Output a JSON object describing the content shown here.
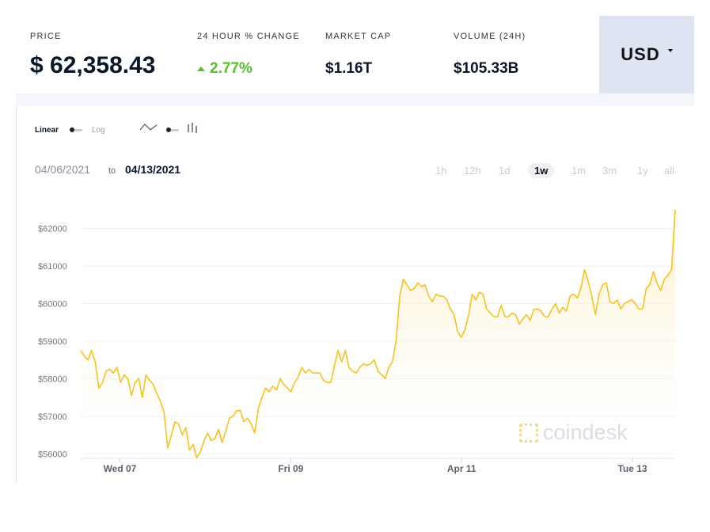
{
  "stats": {
    "price_label": "PRICE",
    "price_value": "$ 62,358.43",
    "change_label": "24 HOUR % CHANGE",
    "change_value": "2.77%",
    "market_cap_label": "MARKET CAP",
    "market_cap_value": "$1.16T",
    "volume_label": "VOLUME (24H)",
    "volume_value": "$105.33B"
  },
  "currency": {
    "selected": "USD"
  },
  "controls": {
    "linear_label": "Linear",
    "log_label": "Log"
  },
  "date_range": {
    "from": "04/06/2021",
    "to_word": "to",
    "to": "04/13/2021"
  },
  "periods": [
    {
      "label": "1h",
      "active": false
    },
    {
      "label": "12h",
      "active": false
    },
    {
      "label": "1d",
      "active": false
    },
    {
      "label": "1w",
      "active": true
    },
    {
      "label": "1m",
      "active": false
    },
    {
      "label": "3m",
      "active": false
    },
    {
      "label": "1y",
      "active": false
    },
    {
      "label": "all",
      "active": false
    }
  ],
  "watermark": "coindesk",
  "colors": {
    "line": "#f7c21e",
    "positive": "#56c02f",
    "currency_bg": "#dfe4f3"
  },
  "chart_data": {
    "type": "area",
    "title": "",
    "xlabel": "",
    "ylabel": "",
    "y_tick_labels": [
      "$56000",
      "$57000",
      "$58000",
      "$59000",
      "$60000",
      "$61000",
      "$62000"
    ],
    "y_ticks": [
      56000,
      57000,
      58000,
      59000,
      60000,
      61000,
      62000
    ],
    "ylim": [
      55900,
      62600
    ],
    "x_tick_labels": [
      {
        "label": "Wed 07",
        "hour": 11
      },
      {
        "label": "Fri 09",
        "hour": 59
      },
      {
        "label": "Apr 11",
        "hour": 107
      },
      {
        "label": "Tue 13",
        "hour": 155
      }
    ],
    "xlim": [
      0,
      167
    ],
    "grid": true,
    "series": [
      {
        "values": [
          58750,
          58600,
          58500,
          58750,
          58450,
          57750,
          57900,
          58200,
          58250,
          58150,
          58300,
          57900,
          58100,
          58000,
          57550,
          57900,
          58000,
          57500,
          58100,
          57950,
          57850,
          57600,
          57400,
          57100,
          56150,
          56500,
          56850,
          56800,
          56500,
          56700,
          56100,
          56250,
          55900,
          56050,
          56350,
          56550,
          56350,
          56400,
          56650,
          56300,
          56600,
          56950,
          57000,
          57150,
          57150,
          56850,
          56950,
          56800,
          56550,
          57200,
          57500,
          57750,
          57650,
          57800,
          57700,
          58000,
          57850,
          57750,
          57650,
          57900,
          58050,
          58300,
          58150,
          58250,
          58150,
          58150,
          58150,
          57950,
          57900,
          57900,
          58350,
          58750,
          58450,
          58750,
          58300,
          58200,
          58150,
          58300,
          58400,
          58350,
          58400,
          58500,
          58200,
          58100,
          58000,
          58300,
          58450,
          59000,
          60200,
          60650,
          60500,
          60350,
          60400,
          60550,
          60450,
          60500,
          60200,
          60050,
          60250,
          60200,
          60200,
          60100,
          59850,
          59700,
          59250,
          59100,
          59300,
          59700,
          60250,
          60100,
          60300,
          60250,
          59850,
          59750,
          59650,
          59650,
          59950,
          59650,
          59650,
          59750,
          59700,
          59450,
          59600,
          59700,
          59550,
          59850,
          59850,
          59800,
          59650,
          59650,
          59850,
          60000,
          59750,
          59900,
          59800,
          60200,
          60250,
          60150,
          60400,
          60900,
          60600,
          60200,
          59700,
          60250,
          60500,
          60550,
          60050,
          60000,
          60100,
          59850,
          60000,
          60050,
          60100,
          60000,
          59850,
          59850,
          60400,
          60500,
          60850,
          60550,
          60350,
          60650,
          60750,
          60900,
          62500
        ]
      }
    ]
  }
}
